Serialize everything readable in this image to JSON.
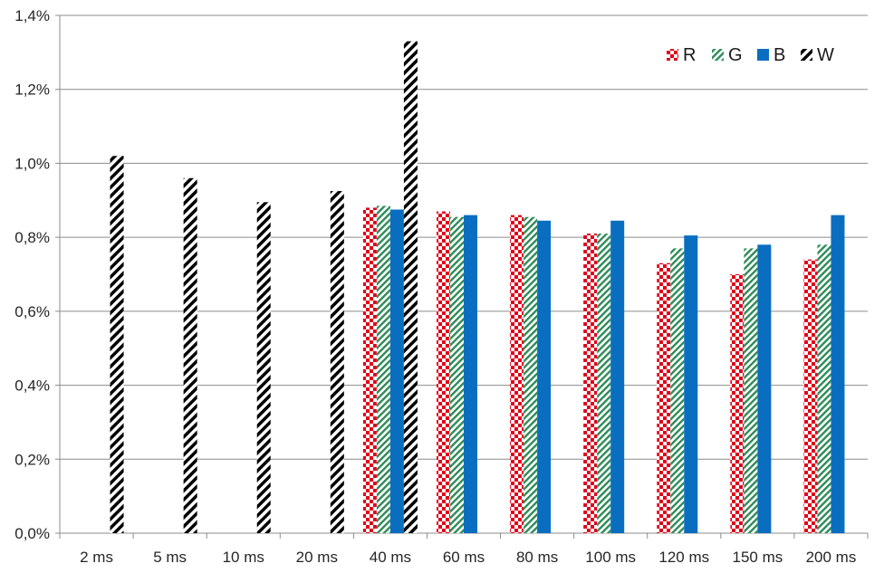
{
  "chart_data": {
    "type": "bar",
    "title": "",
    "xlabel": "",
    "ylabel": "",
    "categories": [
      "2 ms",
      "5 ms",
      "10 ms",
      "20 ms",
      "40 ms",
      "60 ms",
      "80 ms",
      "100 ms",
      "120 ms",
      "150 ms",
      "200 ms"
    ],
    "ylim": [
      0,
      1.4
    ],
    "yticks": [
      0.0,
      0.2,
      0.4,
      0.6,
      0.8,
      1.0,
      1.2,
      1.4
    ],
    "ytick_labels": [
      "0,0%",
      "0,2%",
      "0,4%",
      "0,6%",
      "0,8%",
      "1,0%",
      "1,2%",
      "1,4%"
    ],
    "grid": true,
    "legend_position": "top-right",
    "series": [
      {
        "name": "R",
        "color": "#e0001a",
        "pattern": "checkerboard",
        "values": [
          null,
          null,
          null,
          null,
          0.88,
          0.87,
          0.86,
          0.81,
          0.73,
          0.7,
          0.74
        ]
      },
      {
        "name": "G",
        "color": "#2e8b57",
        "pattern": "diagonal-stripes",
        "values": [
          null,
          null,
          null,
          null,
          0.885,
          0.855,
          0.855,
          0.81,
          0.77,
          0.77,
          0.78
        ]
      },
      {
        "name": "B",
        "color": "#0a6ec0",
        "pattern": "solid",
        "values": [
          null,
          null,
          null,
          null,
          0.875,
          0.86,
          0.845,
          0.845,
          0.805,
          0.78,
          0.86
        ]
      },
      {
        "name": "W",
        "color": "#000000",
        "pattern": "diagonal-stripes-bold",
        "values": [
          1.02,
          0.96,
          0.895,
          0.925,
          1.33,
          null,
          null,
          null,
          null,
          null,
          null
        ]
      }
    ]
  }
}
